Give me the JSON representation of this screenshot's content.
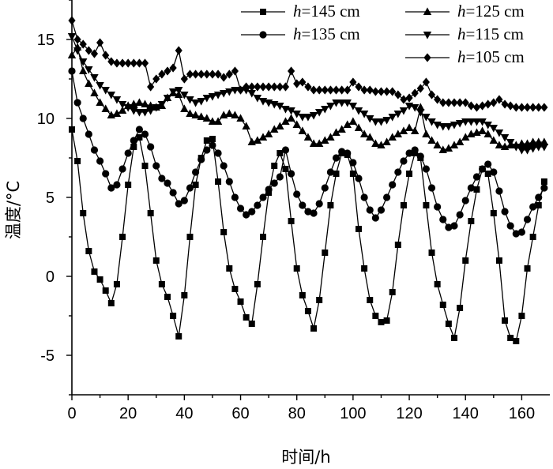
{
  "chart_data": {
    "type": "line",
    "title": "",
    "xlabel": "时间/h",
    "ylabel": "温度/°C",
    "xlim": [
      0,
      170
    ],
    "ylim": [
      -7.5,
      17.5
    ],
    "xticks": [
      0,
      20,
      40,
      60,
      80,
      100,
      120,
      140,
      160
    ],
    "yticks": [
      -5,
      0,
      5,
      10,
      15
    ],
    "grid": false,
    "legend_position": "top-right",
    "series": [
      {
        "name": "h=145 cm",
        "label_italic": "h",
        "label_rest": "=145 cm",
        "marker": "square",
        "x": [
          0,
          2,
          4,
          6,
          8,
          10,
          12,
          14,
          16,
          18,
          20,
          22,
          24,
          26,
          28,
          30,
          32,
          34,
          36,
          38,
          40,
          42,
          44,
          46,
          48,
          50,
          52,
          54,
          56,
          58,
          60,
          62,
          64,
          66,
          68,
          70,
          72,
          74,
          76,
          78,
          80,
          82,
          84,
          86,
          88,
          90,
          92,
          94,
          96,
          98,
          100,
          102,
          104,
          106,
          108,
          110,
          112,
          114,
          116,
          118,
          120,
          122,
          124,
          126,
          128,
          130,
          132,
          134,
          136,
          138,
          140,
          142,
          144,
          146,
          148,
          150,
          152,
          154,
          156,
          158,
          160,
          162,
          164,
          166,
          168
        ],
        "y": [
          9.3,
          7.3,
          4.0,
          1.6,
          0.3,
          -0.2,
          -0.9,
          -1.7,
          -0.5,
          2.5,
          5.8,
          8.2,
          8.8,
          7.0,
          4.0,
          1.0,
          -0.5,
          -1.3,
          -2.5,
          -3.8,
          -1.2,
          2.5,
          5.8,
          7.5,
          8.6,
          8.7,
          6.0,
          2.8,
          0.5,
          -0.8,
          -1.6,
          -2.6,
          -3.0,
          -0.5,
          2.5,
          5.3,
          7.0,
          7.8,
          6.8,
          3.5,
          0.5,
          -1.2,
          -2.2,
          -3.3,
          -1.5,
          1.5,
          4.5,
          6.5,
          7.8,
          7.7,
          6.5,
          3.0,
          0.5,
          -1.5,
          -2.5,
          -2.9,
          -2.8,
          -1.0,
          2.0,
          4.5,
          6.5,
          7.8,
          7.5,
          4.5,
          1.5,
          -0.5,
          -1.8,
          -3.0,
          -3.9,
          -2.0,
          1.0,
          3.5,
          5.5,
          6.8,
          6.5,
          4.0,
          1.0,
          -2.8,
          -3.9,
          -4.1,
          -2.5,
          0.5,
          2.5,
          4.5,
          6.0
        ]
      },
      {
        "name": "h=135 cm",
        "label_italic": "h",
        "label_rest": "=135 cm",
        "marker": "circle",
        "x": [
          0,
          2,
          4,
          6,
          8,
          10,
          12,
          14,
          16,
          18,
          20,
          22,
          24,
          26,
          28,
          30,
          32,
          34,
          36,
          38,
          40,
          42,
          44,
          46,
          48,
          50,
          52,
          54,
          56,
          58,
          60,
          62,
          64,
          66,
          68,
          70,
          72,
          74,
          76,
          78,
          80,
          82,
          84,
          86,
          88,
          90,
          92,
          94,
          96,
          98,
          100,
          102,
          104,
          106,
          108,
          110,
          112,
          114,
          116,
          118,
          120,
          122,
          124,
          126,
          128,
          130,
          132,
          134,
          136,
          138,
          140,
          142,
          144,
          146,
          148,
          150,
          152,
          154,
          156,
          158,
          160,
          162,
          164,
          166,
          168
        ],
        "y": [
          13.0,
          11.0,
          10.0,
          9.0,
          8.0,
          7.3,
          6.5,
          5.6,
          5.8,
          6.8,
          7.8,
          8.6,
          9.3,
          9.0,
          8.2,
          7.0,
          6.2,
          5.9,
          5.3,
          4.6,
          4.8,
          5.6,
          6.6,
          7.4,
          8.0,
          8.3,
          7.8,
          7.0,
          6.0,
          5.0,
          4.3,
          3.9,
          4.1,
          4.5,
          5.0,
          5.5,
          5.9,
          6.3,
          8.0,
          6.5,
          5.2,
          4.5,
          4.1,
          4.0,
          4.6,
          5.6,
          6.6,
          7.5,
          7.9,
          7.8,
          7.2,
          6.2,
          5.0,
          4.2,
          3.7,
          4.2,
          5.0,
          5.8,
          6.6,
          7.3,
          7.8,
          8.0,
          7.6,
          6.8,
          5.6,
          4.4,
          3.6,
          3.1,
          3.2,
          3.9,
          4.8,
          5.6,
          6.3,
          6.8,
          7.1,
          6.6,
          5.4,
          4.1,
          3.2,
          2.7,
          2.8,
          3.6,
          4.4,
          5.0,
          5.6
        ]
      },
      {
        "name": "h=125 cm",
        "label_italic": "h",
        "label_rest": "=125 cm",
        "marker": "triangle-up",
        "x": [
          0,
          2,
          4,
          6,
          8,
          10,
          12,
          14,
          16,
          18,
          20,
          22,
          24,
          26,
          28,
          30,
          32,
          34,
          36,
          38,
          40,
          42,
          44,
          46,
          48,
          50,
          52,
          54,
          56,
          58,
          60,
          62,
          64,
          66,
          68,
          70,
          72,
          74,
          76,
          78,
          80,
          82,
          84,
          86,
          88,
          90,
          92,
          94,
          96,
          98,
          100,
          102,
          104,
          106,
          108,
          110,
          112,
          114,
          116,
          118,
          120,
          122,
          124,
          126,
          128,
          130,
          132,
          134,
          136,
          138,
          140,
          142,
          144,
          146,
          148,
          150,
          152,
          154,
          156,
          158,
          160,
          162,
          164,
          166,
          168
        ],
        "y": [
          14.0,
          14.5,
          13.0,
          12.2,
          11.6,
          11.0,
          10.6,
          10.2,
          10.3,
          10.5,
          10.8,
          10.9,
          11.0,
          10.9,
          10.8,
          10.7,
          10.8,
          11.3,
          11.6,
          11.5,
          10.6,
          10.3,
          10.2,
          10.1,
          10.0,
          9.8,
          9.8,
          10.2,
          10.3,
          10.2,
          10.0,
          9.5,
          8.5,
          8.6,
          8.8,
          9.0,
          9.3,
          9.5,
          9.8,
          10.0,
          9.6,
          9.2,
          8.8,
          8.4,
          8.4,
          8.6,
          8.8,
          9.1,
          9.3,
          9.6,
          9.8,
          9.4,
          9.0,
          8.8,
          8.4,
          8.3,
          8.5,
          8.8,
          9.0,
          9.2,
          9.4,
          9.2,
          10.7,
          9.0,
          8.6,
          8.3,
          8.0,
          8.1,
          8.3,
          8.5,
          8.8,
          9.0,
          9.1,
          9.2,
          9.0,
          8.6,
          8.3,
          8.2,
          8.3,
          8.3,
          8.4,
          8.4,
          8.5,
          8.5,
          8.5
        ]
      },
      {
        "name": "h=115 cm",
        "label_italic": "h",
        "label_rest": "=115 cm",
        "marker": "triangle-down",
        "x": [
          0,
          2,
          4,
          6,
          8,
          10,
          12,
          14,
          16,
          18,
          20,
          22,
          24,
          26,
          28,
          30,
          32,
          34,
          36,
          38,
          40,
          42,
          44,
          46,
          48,
          50,
          52,
          54,
          56,
          58,
          60,
          62,
          64,
          66,
          68,
          70,
          72,
          74,
          76,
          78,
          80,
          82,
          84,
          86,
          88,
          90,
          92,
          94,
          96,
          98,
          100,
          102,
          104,
          106,
          108,
          110,
          112,
          114,
          116,
          118,
          120,
          122,
          124,
          126,
          128,
          130,
          132,
          134,
          136,
          138,
          140,
          142,
          144,
          146,
          148,
          150,
          152,
          154,
          156,
          158,
          160,
          162,
          164,
          166,
          168
        ],
        "y": [
          15.2,
          14.3,
          13.6,
          13.1,
          12.6,
          12.1,
          11.8,
          11.5,
          11.2,
          10.9,
          10.7,
          10.5,
          10.4,
          10.4,
          10.5,
          10.7,
          10.9,
          11.3,
          11.7,
          11.8,
          11.5,
          11.2,
          11.0,
          11.1,
          11.3,
          11.4,
          11.5,
          11.6,
          11.7,
          11.8,
          11.8,
          11.8,
          11.6,
          11.3,
          11.1,
          11.0,
          10.9,
          10.8,
          10.6,
          10.5,
          10.3,
          10.1,
          10.1,
          10.2,
          10.4,
          10.6,
          10.8,
          11.0,
          11.0,
          11.0,
          10.8,
          10.5,
          10.3,
          10.0,
          9.8,
          9.8,
          9.9,
          10.1,
          10.3,
          10.5,
          10.8,
          10.7,
          10.4,
          10.1,
          9.8,
          9.6,
          9.5,
          9.5,
          9.6,
          9.7,
          9.8,
          9.8,
          9.8,
          9.8,
          9.6,
          9.4,
          9.1,
          8.8,
          8.5,
          8.2,
          8.0,
          8.0,
          8.1,
          8.2,
          8.2
        ]
      },
      {
        "name": "h=105 cm",
        "label_italic": "h",
        "label_rest": "=105 cm",
        "marker": "diamond",
        "x": [
          0,
          2,
          4,
          6,
          8,
          10,
          12,
          14,
          16,
          18,
          20,
          22,
          24,
          26,
          28,
          30,
          32,
          34,
          36,
          38,
          40,
          42,
          44,
          46,
          48,
          50,
          52,
          54,
          56,
          58,
          60,
          62,
          64,
          66,
          68,
          70,
          72,
          74,
          76,
          78,
          80,
          82,
          84,
          86,
          88,
          90,
          92,
          94,
          96,
          98,
          100,
          102,
          104,
          106,
          108,
          110,
          112,
          114,
          116,
          118,
          120,
          122,
          124,
          126,
          128,
          130,
          132,
          134,
          136,
          138,
          140,
          142,
          144,
          146,
          148,
          150,
          152,
          154,
          156,
          158,
          160,
          162,
          164,
          166,
          168
        ],
        "y": [
          16.2,
          15.0,
          14.7,
          14.3,
          14.1,
          14.8,
          14.0,
          13.6,
          13.5,
          13.5,
          13.5,
          13.5,
          13.5,
          13.5,
          12.0,
          12.5,
          12.8,
          13.0,
          13.2,
          14.3,
          12.5,
          12.8,
          12.8,
          12.8,
          12.8,
          12.8,
          12.8,
          12.6,
          12.8,
          13.0,
          11.8,
          12.0,
          12.0,
          12.0,
          12.0,
          12.0,
          12.0,
          12.0,
          12.0,
          13.0,
          12.2,
          12.3,
          12.0,
          11.8,
          11.8,
          11.8,
          11.8,
          11.8,
          11.8,
          11.8,
          12.3,
          12.0,
          11.8,
          11.8,
          11.7,
          11.7,
          11.7,
          11.7,
          11.5,
          11.2,
          11.3,
          11.6,
          11.9,
          12.3,
          11.5,
          11.2,
          11.0,
          11.0,
          11.0,
          11.0,
          11.0,
          10.8,
          10.7,
          10.8,
          10.9,
          11.0,
          11.2,
          10.9,
          10.8,
          10.7,
          10.7,
          10.7,
          10.7,
          10.7,
          10.7
        ]
      }
    ]
  }
}
